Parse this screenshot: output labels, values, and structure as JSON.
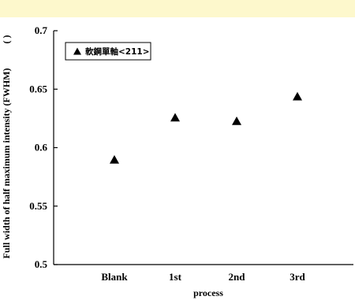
{
  "colors": {
    "top_band": "#fdf8cc",
    "marker": "#000000",
    "axis": "#000000"
  },
  "chart_data": {
    "type": "scatter",
    "title": "",
    "xlabel": "process",
    "ylabel": "Full width of half maximum intensity (FWHM)",
    "ylabel_unit": "( )",
    "categories": [
      "Blank",
      "1st",
      "2nd",
      "3rd"
    ],
    "series": [
      {
        "name": "軟鋼單軸<211>",
        "marker": "triangle",
        "values": [
          0.59,
          0.626,
          0.623,
          0.644
        ]
      }
    ],
    "ylim": [
      0.5,
      0.7
    ],
    "yticks": [
      "0.5",
      "0.55",
      "0.6",
      "0.65",
      "0.7"
    ],
    "grid": false,
    "legend_position": "top-left",
    "legend_boxed": true
  }
}
